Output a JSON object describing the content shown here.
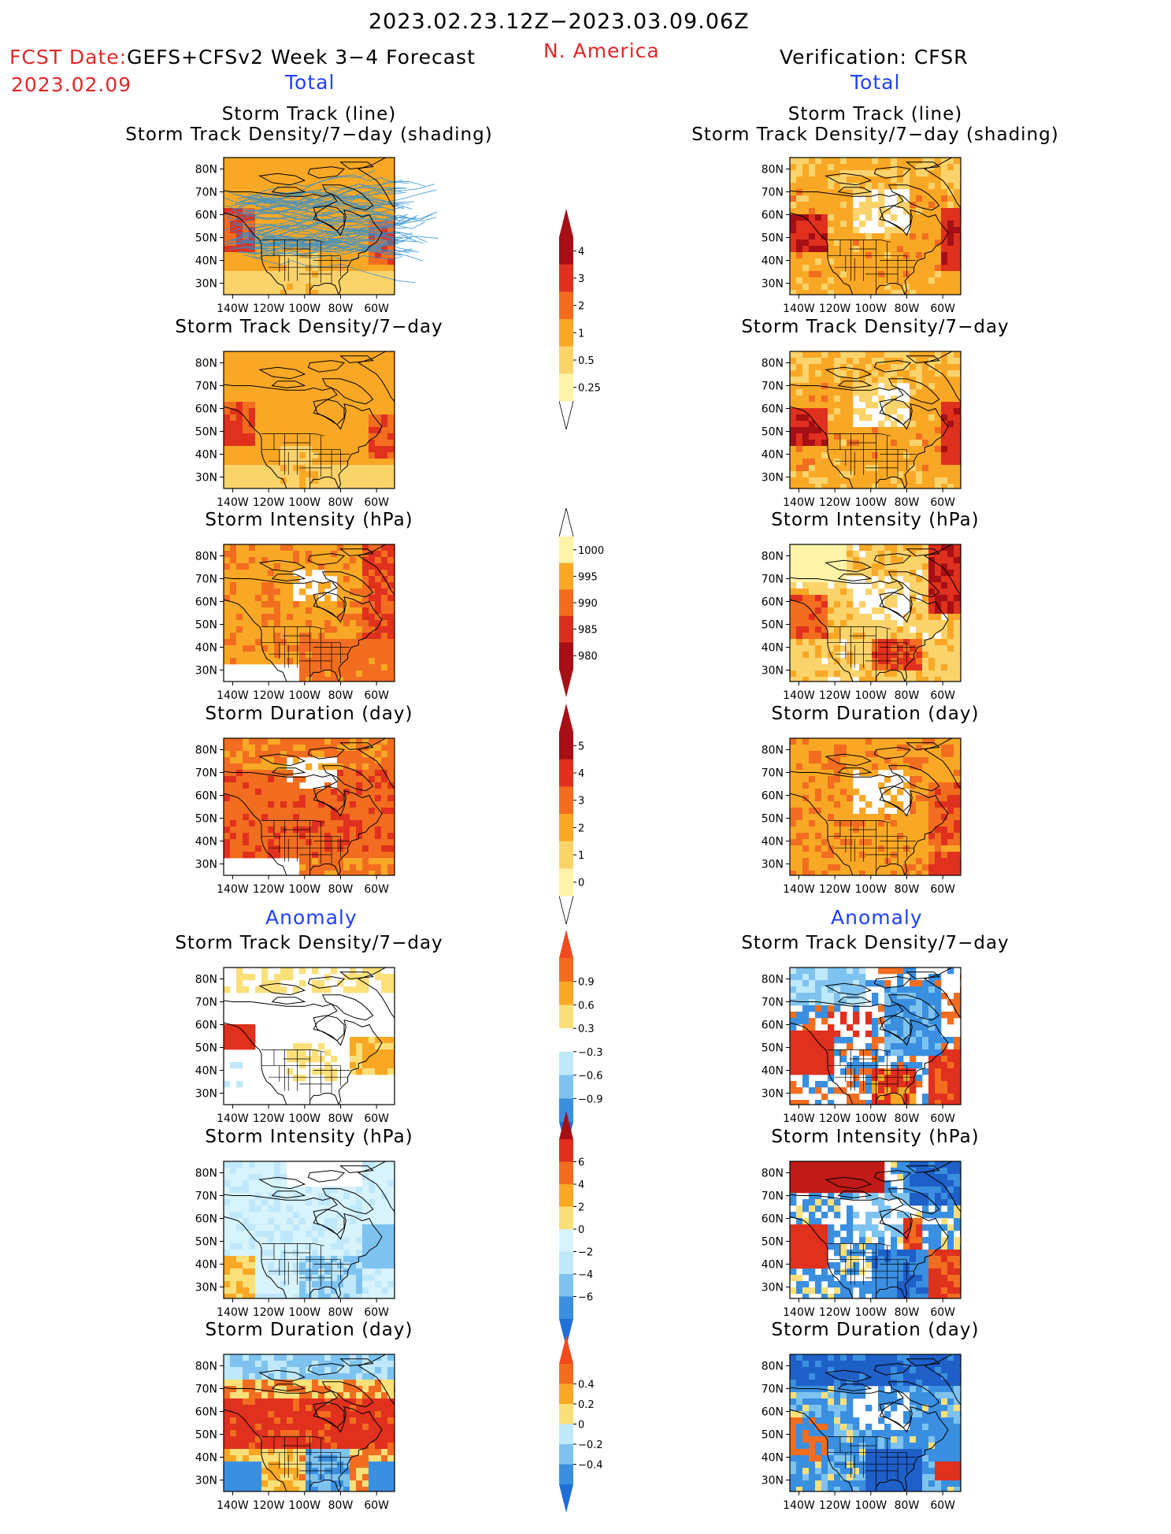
{
  "header": {
    "date_range": "2023.02.23.12Z−2023.03.09.06Z",
    "fcst_label": "FCST Date:",
    "fcst_model": "GEFS+CFSv2 Week 3−4 Forecast",
    "fcst_date": "2023.02.09",
    "region": "N. America",
    "verification": "Verification: CFSR",
    "total_left": "Total",
    "total_right": "Total",
    "anomaly_left": "Anomaly",
    "anomaly_right": "Anomaly"
  },
  "axes": {
    "lat_labels": [
      "80N",
      "70N",
      "60N",
      "50N",
      "40N",
      "30N"
    ],
    "lon_labels": [
      "140W",
      "120W",
      "100W",
      "80W",
      "60W"
    ]
  },
  "panels": {
    "left": [
      {
        "title1": "Storm Track (line)",
        "title2": "Storm Track Density/7−day (shading)",
        "scheme": "density_total",
        "seed": 11,
        "tracks": true
      },
      {
        "title1": "Storm Track Density/7−day",
        "title2": "",
        "scheme": "density_total",
        "seed": 12
      },
      {
        "title1": "Storm Intensity (hPa)",
        "title2": "",
        "scheme": "intensity_total",
        "seed": 13
      },
      {
        "title1": "Storm Duration (day)",
        "title2": "",
        "scheme": "duration_total",
        "seed": 14
      },
      {
        "title1": "Storm Track Density/7−day",
        "title2": "",
        "scheme": "density_anom_fc",
        "seed": 15
      },
      {
        "title1": "Storm Intensity (hPa)",
        "title2": "",
        "scheme": "intensity_anom_fc",
        "seed": 16
      },
      {
        "title1": "Storm Duration (day)",
        "title2": "",
        "scheme": "duration_anom_fc",
        "seed": 17
      }
    ],
    "right": [
      {
        "title1": "Storm Track (line)",
        "title2": "Storm Track Density/7−day (shading)",
        "scheme": "density_total_obs",
        "seed": 21
      },
      {
        "title1": "Storm Track Density/7−day",
        "title2": "",
        "scheme": "density_total_obs",
        "seed": 22
      },
      {
        "title1": "Storm Intensity (hPa)",
        "title2": "",
        "scheme": "intensity_total_obs",
        "seed": 23
      },
      {
        "title1": "Storm Duration (day)",
        "title2": "",
        "scheme": "duration_total_obs",
        "seed": 24
      },
      {
        "title1": "Storm Track Density/7−day",
        "title2": "",
        "scheme": "density_anom_obs",
        "seed": 25
      },
      {
        "title1": "Storm Intensity (hPa)",
        "title2": "",
        "scheme": "intensity_anom_obs",
        "seed": 26
      },
      {
        "title1": "Storm Duration (day)",
        "title2": "",
        "scheme": "duration_anom_obs",
        "seed": 27
      }
    ]
  },
  "colorbars": [
    {
      "name": "density-total",
      "labels": [
        "4",
        "3",
        "2",
        "1",
        "0.5",
        "0.25"
      ],
      "colors": [
        "#a50f15",
        "#e0301e",
        "#f26d1f",
        "#f9a825",
        "#fbd36b",
        "#fff3a8"
      ],
      "top_arrow": "#a50f15",
      "bottom_open": true
    },
    {
      "name": "intensity-total",
      "labels": [
        "1000",
        "995",
        "990",
        "985",
        "980"
      ],
      "colors": [
        "#fff3a8",
        "#f9a825",
        "#f26d1f",
        "#d7301f",
        "#a50f15"
      ],
      "top_open": true,
      "bottom_arrow": "#a50f15"
    },
    {
      "name": "duration-total",
      "labels": [
        "5",
        "4",
        "3",
        "2",
        "1",
        "0"
      ],
      "colors": [
        "#a50f15",
        "#e0301e",
        "#f26d1f",
        "#f9a825",
        "#fbd36b",
        "#fff3a8"
      ],
      "top_arrow": "#a50f15",
      "bottom_open": true
    },
    {
      "name": "density-anomaly",
      "labels": [
        "0.9",
        "0.6",
        "0.3",
        "−0.3",
        "−0.6",
        "−0.9"
      ],
      "colors": [
        "#f26d1f",
        "#f9a825",
        "#fbe07a",
        "#ffffff",
        "#bfe8fb",
        "#7ec3f0",
        "#3a8fe0"
      ],
      "top_arrow": "#f24a1f",
      "bottom_arrow": "#1f6fd8"
    },
    {
      "name": "intensity-anomaly",
      "labels": [
        "6",
        "4",
        "2",
        "0",
        "−2",
        "−4",
        "−6"
      ],
      "colors": [
        "#e0301e",
        "#f26d1f",
        "#f9a825",
        "#fbe07a",
        "#d7f3fc",
        "#bfe8fb",
        "#7ec3f0",
        "#3a8fe0"
      ],
      "top_arrow": "#a50f15",
      "bottom_arrow": "#1f6fd8"
    },
    {
      "name": "duration-anomaly",
      "labels": [
        "0.4",
        "0.2",
        "0",
        "−0.2",
        "−0.4"
      ],
      "colors": [
        "#f26d1f",
        "#f9a825",
        "#fbe07a",
        "#bfe8fb",
        "#7ec3f0",
        "#3a8fe0"
      ],
      "top_arrow": "#f24a1f",
      "bottom_arrow": "#1f6fd8"
    }
  ],
  "colors": {
    "accent_red": "#e0282a",
    "accent_blue": "#2040ff",
    "track_line": "#2b8fd6"
  }
}
